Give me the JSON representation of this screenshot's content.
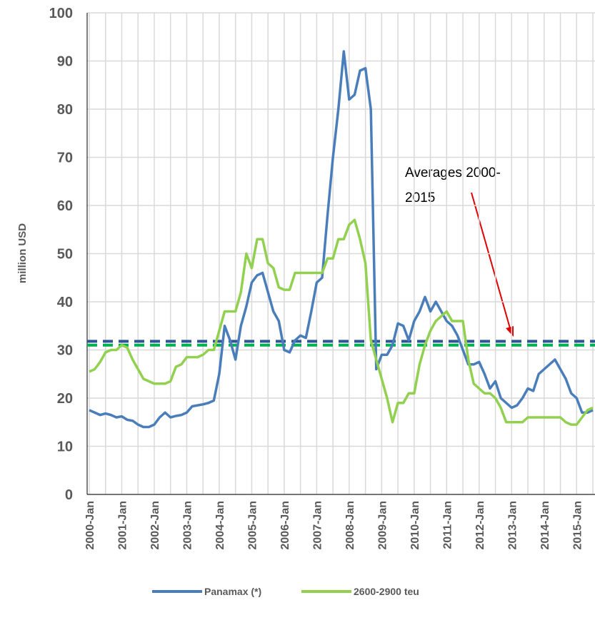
{
  "chart_data": {
    "type": "line",
    "y_label": "million  USD",
    "categories": [
      "2000-Jan",
      null,
      null,
      null,
      null,
      null,
      "2001-Jan",
      null,
      null,
      null,
      null,
      null,
      "2002-Jan",
      null,
      null,
      null,
      null,
      null,
      "2003-Jan",
      null,
      null,
      null,
      null,
      null,
      "2004-Jan",
      null,
      null,
      null,
      null,
      null,
      "2005-Jan",
      null,
      null,
      null,
      null,
      null,
      "2006-Jan",
      null,
      null,
      null,
      null,
      null,
      "2007-Jan",
      null,
      null,
      null,
      null,
      null,
      "2008-Jan",
      null,
      null,
      null,
      null,
      null,
      "2009-Jan",
      null,
      null,
      null,
      null,
      null,
      "2010-Jan",
      null,
      null,
      null,
      null,
      null,
      "2011-Jan",
      null,
      null,
      null,
      null,
      null,
      "2012-Jan",
      null,
      null,
      null,
      null,
      null,
      "2013-Jan",
      null,
      null,
      null,
      null,
      null,
      "2014-Jan",
      null,
      null,
      null,
      null,
      null,
      "2015-Jan",
      null,
      null,
      null
    ],
    "series": [
      {
        "name": "Panamax (*)",
        "color": "#4a7ebb",
        "values": [
          17.5,
          17,
          16.5,
          16.8,
          16.5,
          16,
          16.2,
          15.5,
          15.3,
          14.5,
          14,
          14,
          14.5,
          16,
          17,
          16,
          16.3,
          16.5,
          17,
          18.3,
          18.5,
          18.7,
          19,
          19.5,
          25,
          35,
          32,
          28,
          35,
          39,
          44,
          45.5,
          46,
          42,
          38,
          36,
          30,
          29.5,
          32,
          33,
          32.5,
          38,
          44,
          45,
          58,
          70,
          80,
          92,
          82,
          83,
          88,
          88.5,
          80,
          26,
          29,
          29,
          31,
          35.5,
          35,
          32,
          36,
          38,
          41,
          38,
          40,
          38,
          36,
          35,
          33,
          30,
          27,
          27,
          27.5,
          25,
          22,
          23.5,
          20,
          19,
          18,
          18.5,
          20,
          22,
          21.5,
          25,
          26,
          27,
          28,
          26,
          24,
          21,
          20,
          17,
          17,
          17.5
        ]
      },
      {
        "name": "2600-2900 teu",
        "color": "#92d050",
        "values": [
          25.5,
          26,
          27.5,
          29.5,
          30,
          30,
          31,
          30.5,
          28,
          26,
          24,
          23.5,
          23,
          23,
          23,
          23.5,
          26.5,
          27,
          28.5,
          28.5,
          28.5,
          29,
          30,
          30,
          34,
          38,
          38,
          38,
          42,
          50,
          47,
          53,
          53,
          48,
          47,
          43,
          42.5,
          42.5,
          46,
          46,
          46,
          46,
          46,
          46,
          49,
          49,
          53,
          53,
          56,
          57,
          53,
          48,
          32,
          28,
          24,
          20,
          15,
          19,
          19,
          21,
          21,
          27,
          31,
          34,
          36,
          37,
          38,
          36,
          36,
          36,
          28,
          23,
          22,
          21,
          21,
          20,
          18,
          15,
          15,
          15,
          15,
          16,
          16,
          16,
          16,
          16,
          16,
          16,
          15,
          14.5,
          14.5,
          16,
          17.5,
          18
        ]
      }
    ],
    "average_lines": [
      {
        "value": 31.8,
        "color": "#2f5597"
      },
      {
        "value": 31,
        "color": "#00b050"
      }
    ],
    "annotation": [
      "Averages 2000-",
      "2015"
    ],
    "ylim": [
      0,
      100
    ],
    "yticks": [
      0,
      10,
      20,
      30,
      40,
      50,
      60,
      70,
      80,
      90,
      100
    ],
    "grid": true
  }
}
